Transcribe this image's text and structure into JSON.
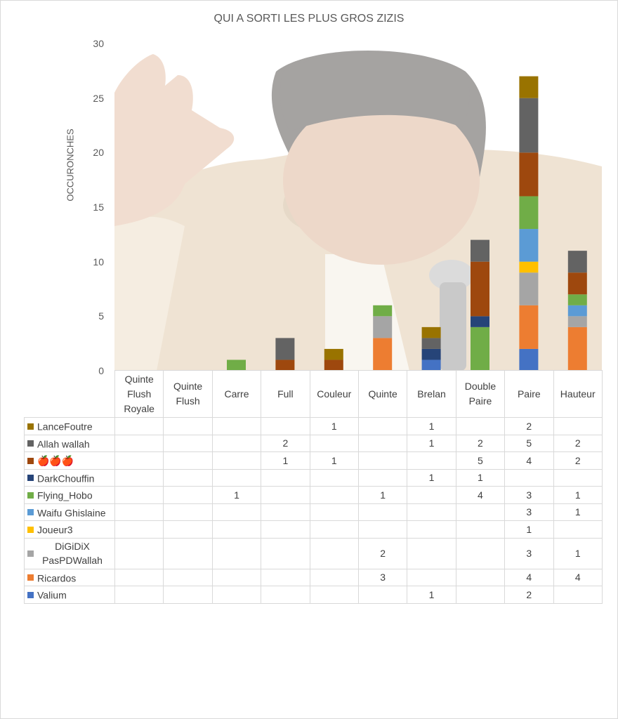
{
  "chart_data": {
    "type": "bar",
    "stacked": true,
    "title": "QUI A SORTI LES PLUS GROS ZIZIS",
    "ylabel": "OCCURONCHES",
    "xlabel": "",
    "ylim": [
      0,
      30
    ],
    "yticks": [
      "0",
      "5",
      "10",
      "15",
      "20",
      "25",
      "30"
    ],
    "grid": false,
    "legend": "data-table",
    "categories": [
      "Quinte Flush Royale",
      "Quinte Flush",
      "Carre",
      "Full",
      "Couleur",
      "Quinte",
      "Brelan",
      "Double Paire",
      "Paire",
      "Hauteur"
    ],
    "series": [
      {
        "name": "Valium",
        "color": "#4472c4",
        "values": [
          null,
          null,
          null,
          null,
          null,
          null,
          1,
          null,
          2,
          null
        ]
      },
      {
        "name": "Ricardos",
        "color": "#ed7d31",
        "values": [
          null,
          null,
          null,
          null,
          null,
          3,
          null,
          null,
          4,
          4
        ]
      },
      {
        "name": "DiGiDiX PasPDWallah",
        "color": "#a5a5a5",
        "values": [
          null,
          null,
          null,
          null,
          null,
          2,
          null,
          null,
          3,
          1
        ]
      },
      {
        "name": "Joueur3",
        "color": "#ffc000",
        "values": [
          null,
          null,
          null,
          null,
          null,
          null,
          null,
          null,
          1,
          null
        ]
      },
      {
        "name": "Waifu Ghislaine",
        "color": "#5b9bd5",
        "values": [
          null,
          null,
          null,
          null,
          null,
          null,
          null,
          null,
          3,
          1
        ]
      },
      {
        "name": "Flying_Hobo",
        "color": "#70ad47",
        "values": [
          null,
          null,
          1,
          null,
          null,
          1,
          null,
          4,
          3,
          1
        ]
      },
      {
        "name": "DarkChouffin",
        "color": "#264478",
        "values": [
          null,
          null,
          null,
          null,
          null,
          null,
          1,
          1,
          null,
          null
        ]
      },
      {
        "name": "🍎🍎🍎",
        "color": "#9e480e",
        "values": [
          null,
          null,
          null,
          1,
          1,
          null,
          null,
          5,
          4,
          2
        ]
      },
      {
        "name": "Allah wallah",
        "color": "#636363",
        "values": [
          null,
          null,
          null,
          2,
          null,
          null,
          1,
          2,
          5,
          2
        ]
      },
      {
        "name": "LanceFoutre",
        "color": "#997300",
        "values": [
          null,
          null,
          null,
          null,
          1,
          null,
          1,
          null,
          2,
          null
        ]
      }
    ]
  }
}
